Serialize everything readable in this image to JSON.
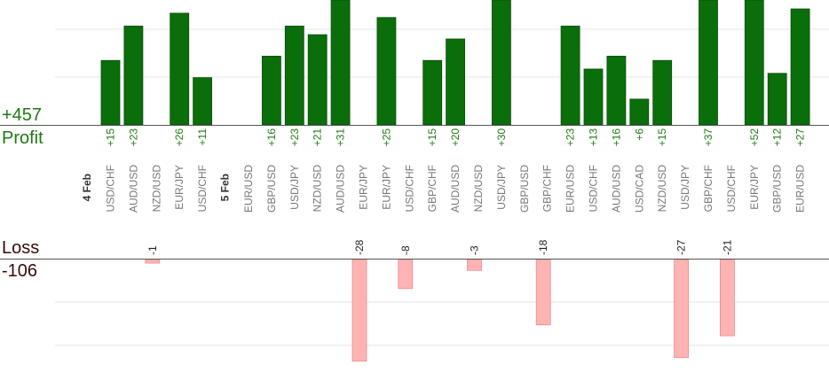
{
  "summary": {
    "profit_total": "+457",
    "profit_label": "Profit",
    "loss_label": "Loss",
    "loss_total": "-106"
  },
  "colors": {
    "profit_bar": "#0a6e0a",
    "profit_bar_edge": "#0b4d0b",
    "loss_bar": "#ffb3b3",
    "loss_bar_edge": "#e88c8c",
    "profit_text": "#1e7a12",
    "gridline": "#e6e6e6",
    "axis": "#555555",
    "category_text": "#777777",
    "date_text": "#333333"
  },
  "chart_data": {
    "type": "bar",
    "ylim_profit": [
      0,
      30
    ],
    "ylim_loss": [
      -28,
      0
    ],
    "grid": true,
    "dates": [
      {
        "label": "4 Feb",
        "before_index": 0
      },
      {
        "label": "5 Feb",
        "before_index": 5
      }
    ],
    "bars": [
      {
        "pair": "USD/CHF",
        "profit": 15,
        "profit_label": "+15",
        "loss": null,
        "loss_label": ""
      },
      {
        "pair": "AUD/USD",
        "profit": 23,
        "profit_label": "+23",
        "loss": null,
        "loss_label": ""
      },
      {
        "pair": "NZD/USD",
        "profit": null,
        "profit_label": "",
        "loss": -1,
        "loss_label": "-1"
      },
      {
        "pair": "EUR/JPY",
        "profit": 26,
        "profit_label": "+26",
        "loss": null,
        "loss_label": ""
      },
      {
        "pair": "USD/CHF",
        "profit": 11,
        "profit_label": "+11",
        "loss": null,
        "loss_label": ""
      },
      {
        "pair": "EUR/USD",
        "profit": null,
        "profit_label": "",
        "loss": null,
        "loss_label": ""
      },
      {
        "pair": "GBP/USD",
        "profit": 16,
        "profit_label": "+16",
        "loss": null,
        "loss_label": ""
      },
      {
        "pair": "USD/JPY",
        "profit": 23,
        "profit_label": "+23",
        "loss": null,
        "loss_label": ""
      },
      {
        "pair": "NZD/USD",
        "profit": 21,
        "profit_label": "+21",
        "loss": null,
        "loss_label": ""
      },
      {
        "pair": "AUD/USD",
        "profit": 31,
        "profit_label": "+31",
        "loss": null,
        "loss_label": ""
      },
      {
        "pair": "EUR/JPY",
        "profit": null,
        "profit_label": "",
        "loss": -28,
        "loss_label": "-28"
      },
      {
        "pair": "EUR/JPY",
        "profit": 25,
        "profit_label": "+25",
        "loss": null,
        "loss_label": ""
      },
      {
        "pair": "USD/CHF",
        "profit": null,
        "profit_label": "",
        "loss": -8,
        "loss_label": "-8"
      },
      {
        "pair": "GBP/CHF",
        "profit": 15,
        "profit_label": "+15",
        "loss": null,
        "loss_label": ""
      },
      {
        "pair": "AUD/USD",
        "profit": 20,
        "profit_label": "+20",
        "loss": null,
        "loss_label": ""
      },
      {
        "pair": "NZD/USD",
        "profit": null,
        "profit_label": "",
        "loss": -3,
        "loss_label": "-3"
      },
      {
        "pair": "USD/JPY",
        "profit": 30,
        "profit_label": "+30",
        "loss": null,
        "loss_label": ""
      },
      {
        "pair": "GBP/USD",
        "profit": null,
        "profit_label": "",
        "loss": null,
        "loss_label": ""
      },
      {
        "pair": "GBP/CHF",
        "profit": null,
        "profit_label": "",
        "loss": -18,
        "loss_label": "-18"
      },
      {
        "pair": "EUR/USD",
        "profit": 23,
        "profit_label": "+23",
        "loss": null,
        "loss_label": ""
      },
      {
        "pair": "USD/CHF",
        "profit": 13,
        "profit_label": "+13",
        "loss": null,
        "loss_label": ""
      },
      {
        "pair": "AUD/USD",
        "profit": 16,
        "profit_label": "+16",
        "loss": null,
        "loss_label": ""
      },
      {
        "pair": "USD/CAD",
        "profit": 6,
        "profit_label": "+6",
        "loss": null,
        "loss_label": ""
      },
      {
        "pair": "NZD/USD",
        "profit": 15,
        "profit_label": "+15",
        "loss": null,
        "loss_label": ""
      },
      {
        "pair": "USD/JPY",
        "profit": null,
        "profit_label": "",
        "loss": -27,
        "loss_label": "-27"
      },
      {
        "pair": "GBP/CHF",
        "profit": 37,
        "profit_label": "+37",
        "loss": null,
        "loss_label": ""
      },
      {
        "pair": "USD/CHF",
        "profit": null,
        "profit_label": "",
        "loss": -21,
        "loss_label": "-21"
      },
      {
        "pair": "EUR/JPY",
        "profit": 52,
        "profit_label": "+52",
        "loss": null,
        "loss_label": ""
      },
      {
        "pair": "GBP/USD",
        "profit": 12,
        "profit_label": "+12",
        "loss": null,
        "loss_label": ""
      },
      {
        "pair": "EUR/USD",
        "profit": 27,
        "profit_label": "+27",
        "loss": null,
        "loss_label": ""
      }
    ]
  }
}
